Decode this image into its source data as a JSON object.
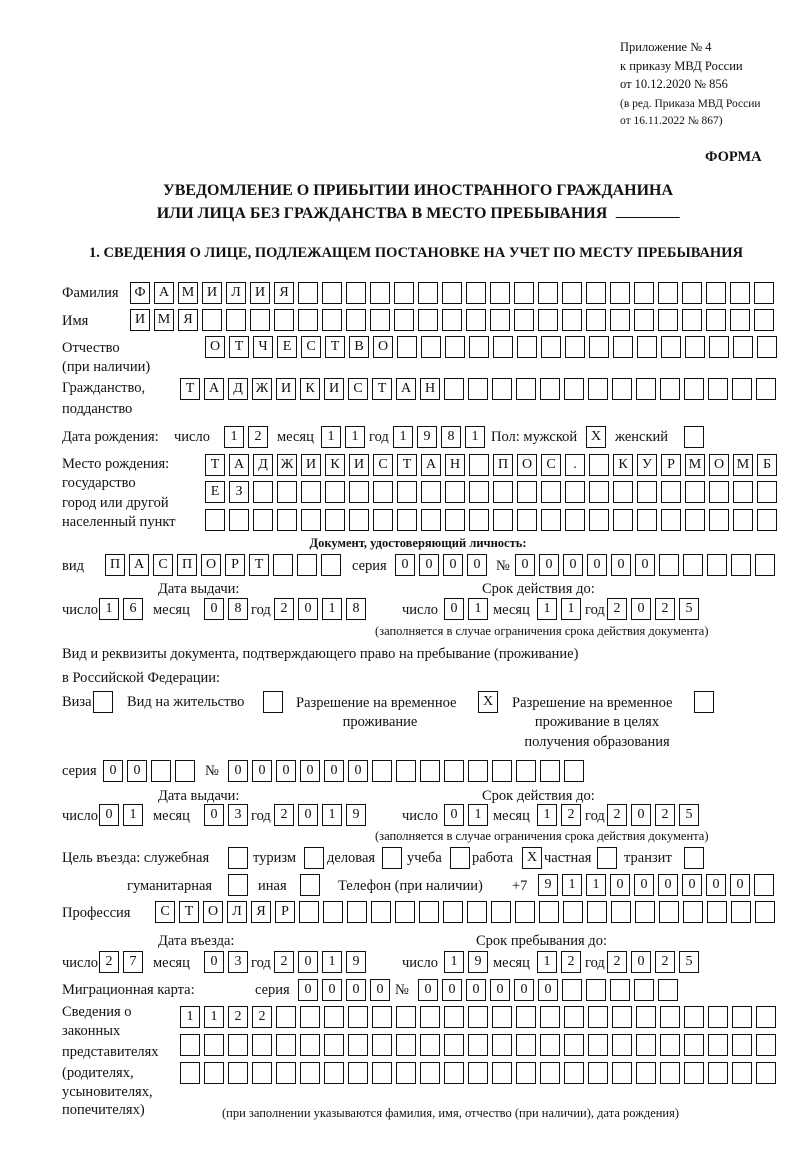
{
  "header": {
    "appendix": "Приложение № 4",
    "order": "к приказу МВД России",
    "order_date": "от 10.12.2020 № 856",
    "edition_1": "(в ред. Приказа МВД России",
    "edition_2": "от 16.11.2022 № 867)"
  },
  "form_label": "ФОРМА",
  "title": {
    "line1": "УВЕДОМЛЕНИЕ О ПРИБЫТИИ ИНОСТРАННОГО ГРАЖДАНИНА",
    "line2": "ИЛИ ЛИЦА БЕЗ ГРАЖДАНСТВА В МЕСТО ПРЕБЫВАНИЯ"
  },
  "section1": "1. СВЕДЕНИЯ О ЛИЦЕ, ПОДЛЕЖАЩЕМ ПОСТАНОВКЕ НА УЧЕТ ПО МЕСТУ ПРЕБЫВАНИЯ",
  "labels": {
    "surname": "Фамилия",
    "name": "Имя",
    "patronymic": "Отчество",
    "patronymic_note": "(при наличии)",
    "citizenship": "Гражданство,",
    "citizenship2": "подданство",
    "birth_date": "Дата рождения:",
    "day": "число",
    "month": "месяц",
    "year": "год",
    "sex": "Пол: мужской",
    "female": "женский",
    "birthplace1": "Место рождения:",
    "birthplace2": "государство",
    "birthplace3": "город или другой",
    "birthplace4": "населенный пункт",
    "id_doc": "Документ, удостоверяющий личность:",
    "kind": "вид",
    "series": "серия",
    "number": "№",
    "issue_date": "Дата выдачи:",
    "valid_until": "Срок действия до:",
    "validity_note": "(заполняется в случае ограничения срока действия документа)",
    "stay_doc1": "Вид и реквизиты документа, подтверждающего право на пребывание (проживание)",
    "stay_doc2": "в Российской Федерации:",
    "visa": "Виза",
    "residence": "Вид на жительство",
    "trp1": "Разрешение на временное",
    "trp2": "проживание",
    "trpe1": "Разрешение на временное",
    "trpe2": "проживание в целях",
    "trpe3": "получения образования",
    "purpose": "Цель въезда: служебная",
    "tourism": "туризм",
    "business": "деловая",
    "study": "учеба",
    "work": "работа",
    "private": "частная",
    "transit": "транзит",
    "humanitarian": "гуманитарная",
    "other": "иная",
    "phone": "Телефон (при наличии)",
    "phone_prefix": "+7",
    "profession": "Профессия",
    "entry_date": "Дата въезда:",
    "stay_until": "Срок пребывания до:",
    "migration_card": "Миграционная карта:",
    "reps": [
      "Сведения о",
      "законных",
      "представителях",
      "(родителях,",
      "усыновителях,",
      "попечителях)"
    ],
    "reps_note": "(при заполнении указываются фамилия, имя, отчество (при наличии), дата рождения)"
  },
  "fields": {
    "surname": "ФАМИЛИЯ",
    "name": "ИМЯ",
    "patronymic": "ОТЧЕСТВО",
    "citizenship": "ТАДЖИКИСТАН",
    "birth": {
      "day": "12",
      "month": "11",
      "year": "1981"
    },
    "sex_male": "X",
    "sex_female": "",
    "birthplace": [
      "ТАДЖИКИСТАН ПОС. КУРМОМБ",
      "ЕЗ",
      ""
    ],
    "id_doc": {
      "kind": "ПАСПОРТ",
      "series": "0000",
      "number": "000000",
      "issue": {
        "day": "16",
        "month": "08",
        "year": "2018"
      },
      "valid": {
        "day": "01",
        "month": "11",
        "year": "2025"
      }
    },
    "stay_doc_type": {
      "visa": "",
      "residence": "",
      "trp": "X",
      "trpe": ""
    },
    "stay_doc": {
      "series": "00",
      "number": "000000",
      "issue": {
        "day": "01",
        "month": "03",
        "year": "2019"
      },
      "valid": {
        "day": "01",
        "month": "12",
        "year": "2025"
      }
    },
    "purpose": {
      "official": "",
      "tourism": "",
      "business": "",
      "study": "",
      "work": "X",
      "private": "",
      "transit": "",
      "humanitarian": "",
      "other": ""
    },
    "phone": "911000000",
    "profession": "СТОЛЯР",
    "entry": {
      "day": "27",
      "month": "03",
      "year": "2019"
    },
    "stay_until": {
      "day": "19",
      "month": "12",
      "year": "2025"
    },
    "migration_card": {
      "series": "0000",
      "number": "000000"
    },
    "representatives": [
      "1122",
      "",
      ""
    ]
  }
}
